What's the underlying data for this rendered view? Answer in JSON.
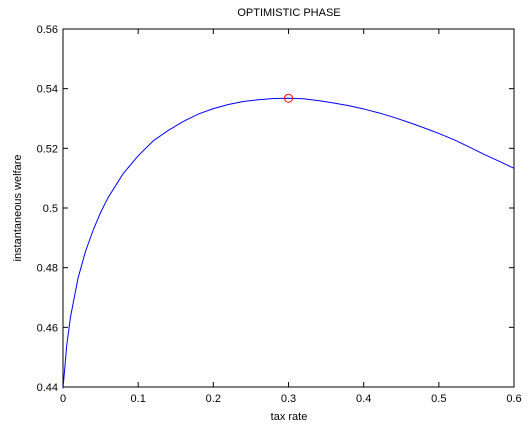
{
  "chart_data": {
    "type": "line",
    "title": "OPTIMISTIC PHASE",
    "xlabel": "tax rate",
    "ylabel": "instantaneous welfare",
    "xlim": [
      0,
      0.6
    ],
    "ylim": [
      0.44,
      0.56
    ],
    "xticks": [
      0,
      0.1,
      0.2,
      0.3,
      0.4,
      0.5,
      0.6
    ],
    "xtick_labels": [
      "0",
      "0.1",
      "0.2",
      "0.3",
      "0.4",
      "0.5",
      "0.6"
    ],
    "yticks": [
      0.44,
      0.46,
      0.48,
      0.5,
      0.52,
      0.54,
      0.56
    ],
    "ytick_labels": [
      "0.44",
      "0.46",
      "0.48",
      "0.5",
      "0.52",
      "0.54",
      "0.56"
    ],
    "grid": false,
    "series": [
      {
        "color": "#0000ff",
        "x": [
          0,
          0.005,
          0.01,
          0.02,
          0.03,
          0.04,
          0.05,
          0.06,
          0.08,
          0.1,
          0.12,
          0.14,
          0.16,
          0.18,
          0.2,
          0.22,
          0.24,
          0.26,
          0.28,
          0.3,
          0.32,
          0.34,
          0.36,
          0.38,
          0.4,
          0.42,
          0.44,
          0.46,
          0.48,
          0.5,
          0.52,
          0.54,
          0.56,
          0.58,
          0.6
        ],
        "y": [
          0.4395,
          0.454,
          0.4635,
          0.4765,
          0.4855,
          0.4925,
          0.4985,
          0.5035,
          0.5115,
          0.5175,
          0.5225,
          0.526,
          0.529,
          0.5315,
          0.5333,
          0.5347,
          0.5357,
          0.5363,
          0.5367,
          0.5368,
          0.5366,
          0.536,
          0.5352,
          0.5343,
          0.5332,
          0.5319,
          0.5304,
          0.5287,
          0.5269,
          0.525,
          0.5229,
          0.5205,
          0.518,
          0.5157,
          0.5133
        ]
      }
    ],
    "markers": [
      {
        "x": 0.3,
        "y": 0.5368,
        "shape": "circle",
        "color": "#ff0000"
      }
    ]
  }
}
